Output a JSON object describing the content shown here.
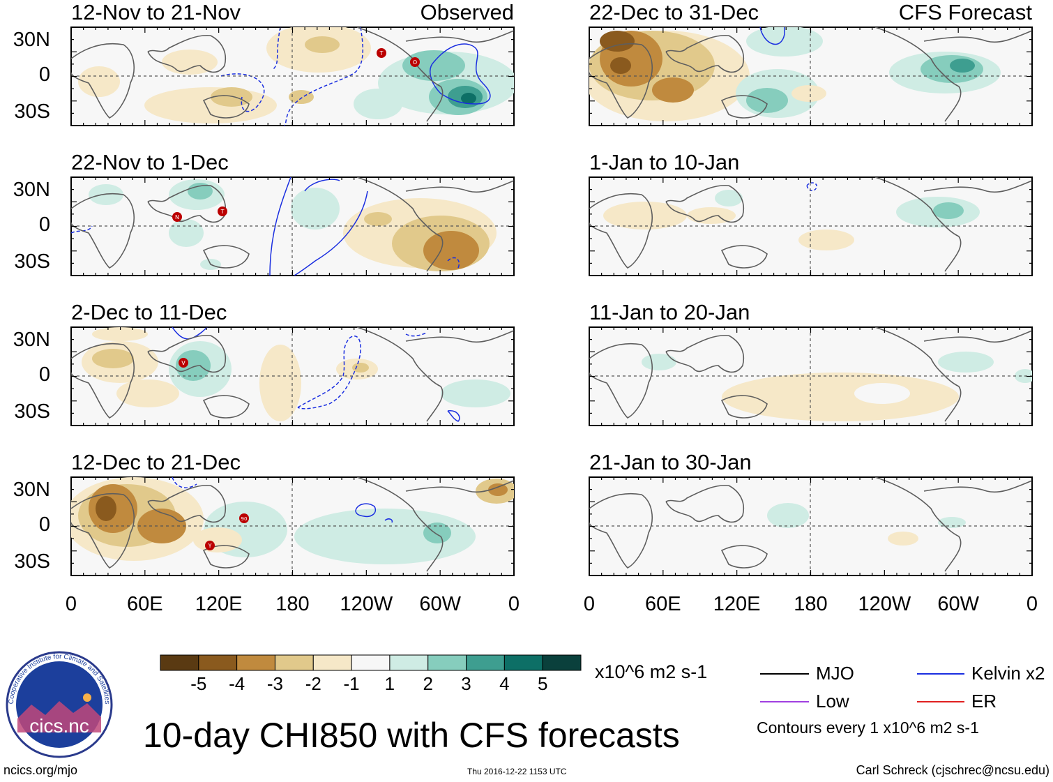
{
  "panels_observed": [
    {
      "title": "12-Nov to 21-Nov",
      "corner_label": "Observed"
    },
    {
      "title": "22-Nov to 1-Dec",
      "corner_label": ""
    },
    {
      "title": "2-Dec to 11-Dec",
      "corner_label": ""
    },
    {
      "title": "12-Dec to 21-Dec",
      "corner_label": ""
    }
  ],
  "panels_forecast": [
    {
      "title": "22-Dec to 31-Dec",
      "corner_label": "CFS Forecast"
    },
    {
      "title": "1-Jan to 10-Jan",
      "corner_label": ""
    },
    {
      "title": "11-Jan to 20-Jan",
      "corner_label": ""
    },
    {
      "title": "21-Jan to 30-Jan",
      "corner_label": ""
    }
  ],
  "lat_labels": [
    "30N",
    "0",
    "30S"
  ],
  "lon_labels": [
    "0",
    "60E",
    "120E",
    "180",
    "120W",
    "60W",
    "0"
  ],
  "colorbar": {
    "units": "x10^6 m2 s-1",
    "tick_labels": [
      "-5",
      "-4",
      "-3",
      "-2",
      "-1",
      "1",
      "2",
      "3",
      "4",
      "5"
    ],
    "colors": [
      "#5a3a12",
      "#8a5a1e",
      "#c08a3e",
      "#e1c98b",
      "#f6e8c8",
      "#f7f7f7",
      "#cfece4",
      "#86cdbd",
      "#3e9e90",
      "#0d6f66",
      "#0a403c"
    ]
  },
  "legend": {
    "items": [
      {
        "label": "MJO",
        "color": "#000000"
      },
      {
        "label": "Kelvin x2",
        "color": "#1a2ee0"
      },
      {
        "label": "Low",
        "color": "#a040e0"
      },
      {
        "label": "ER",
        "color": "#e02020"
      }
    ],
    "note": "Contours every 1 x10^6 m2 s-1"
  },
  "main_title": "10-day CHI850 with CFS forecasts",
  "logo_text": "cics.nc",
  "logo_ring_text": "Cooperative Institute for Climate and Satellites",
  "footer": {
    "left": "ncics.org/mjo",
    "center": "Thu 2016-12-22 1153 UTC",
    "right": "Carl Schreck (cjschrec@ncsu.edu)"
  },
  "storm_markers": [
    {
      "panel": 0,
      "label": "T"
    },
    {
      "panel": 0,
      "label": "O"
    },
    {
      "panel": 1,
      "label": "N"
    },
    {
      "panel": 1,
      "label": "T"
    },
    {
      "panel": 2,
      "label": "V"
    },
    {
      "panel": 3,
      "label": "90"
    },
    {
      "panel": 3,
      "label": "Y"
    }
  ]
}
